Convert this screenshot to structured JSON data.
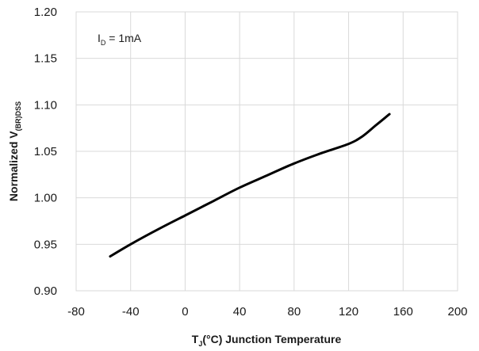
{
  "chart_data": {
    "type": "line",
    "xlabel": {
      "prefix": "T",
      "sub": "J",
      "suffix": "(°C) Junction Temperature"
    },
    "ylabel": {
      "prefix": "Normalized V",
      "sub": "(BR)DSS"
    },
    "annotation": {
      "prefix": "I",
      "sub": "D",
      "suffix": " = 1mA"
    },
    "xlim": [
      -80,
      200
    ],
    "ylim": [
      0.9,
      1.2
    ],
    "x_ticks": [
      "-80",
      "-40",
      "0",
      "40",
      "80",
      "120",
      "160",
      "200"
    ],
    "y_ticks": [
      "0.90",
      "0.95",
      "1.00",
      "1.05",
      "1.10",
      "1.15",
      "1.20"
    ],
    "grid": true,
    "series": [
      {
        "color": "#000000",
        "x": [
          -55,
          -40,
          -20,
          0,
          20,
          40,
          60,
          80,
          100,
          120,
          130,
          140,
          150
        ],
        "y": [
          0.937,
          0.95,
          0.966,
          0.981,
          0.996,
          1.011,
          1.024,
          1.037,
          1.048,
          1.058,
          1.066,
          1.078,
          1.09
        ]
      }
    ]
  }
}
